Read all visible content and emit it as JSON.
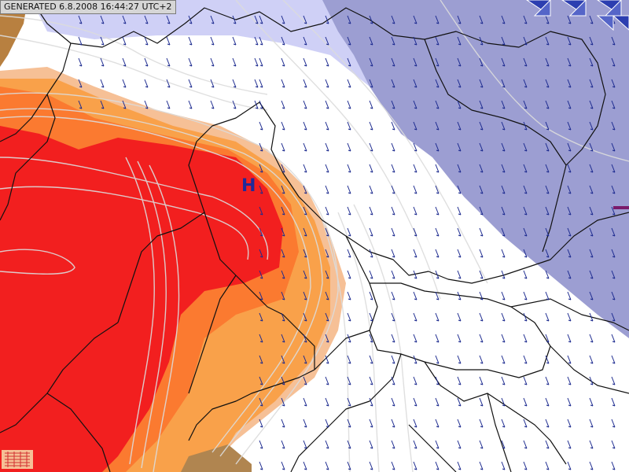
{
  "header": {
    "generated_label": "GENERATED 6.8.2008 16:44:27 UTC+2"
  },
  "pressure_centers": [
    {
      "label": "H",
      "type": "high"
    }
  ],
  "field": {
    "colors": {
      "heat_core": "#f21f1f",
      "heat_mid": "#fb7a30",
      "heat_outer": "#f9a14a",
      "heat_edge": "#f6c096",
      "cool_light": "#cfd0f6",
      "cool_mid": "#9c9ed2",
      "border": "#111111",
      "isoline": "#c8c8c8",
      "wind_arrow": "#1c2a8f"
    }
  },
  "icons": {
    "wind": "wind-arrow-icon",
    "flags": "triangle-flag-icon",
    "legend": "legend-grid-icon"
  }
}
